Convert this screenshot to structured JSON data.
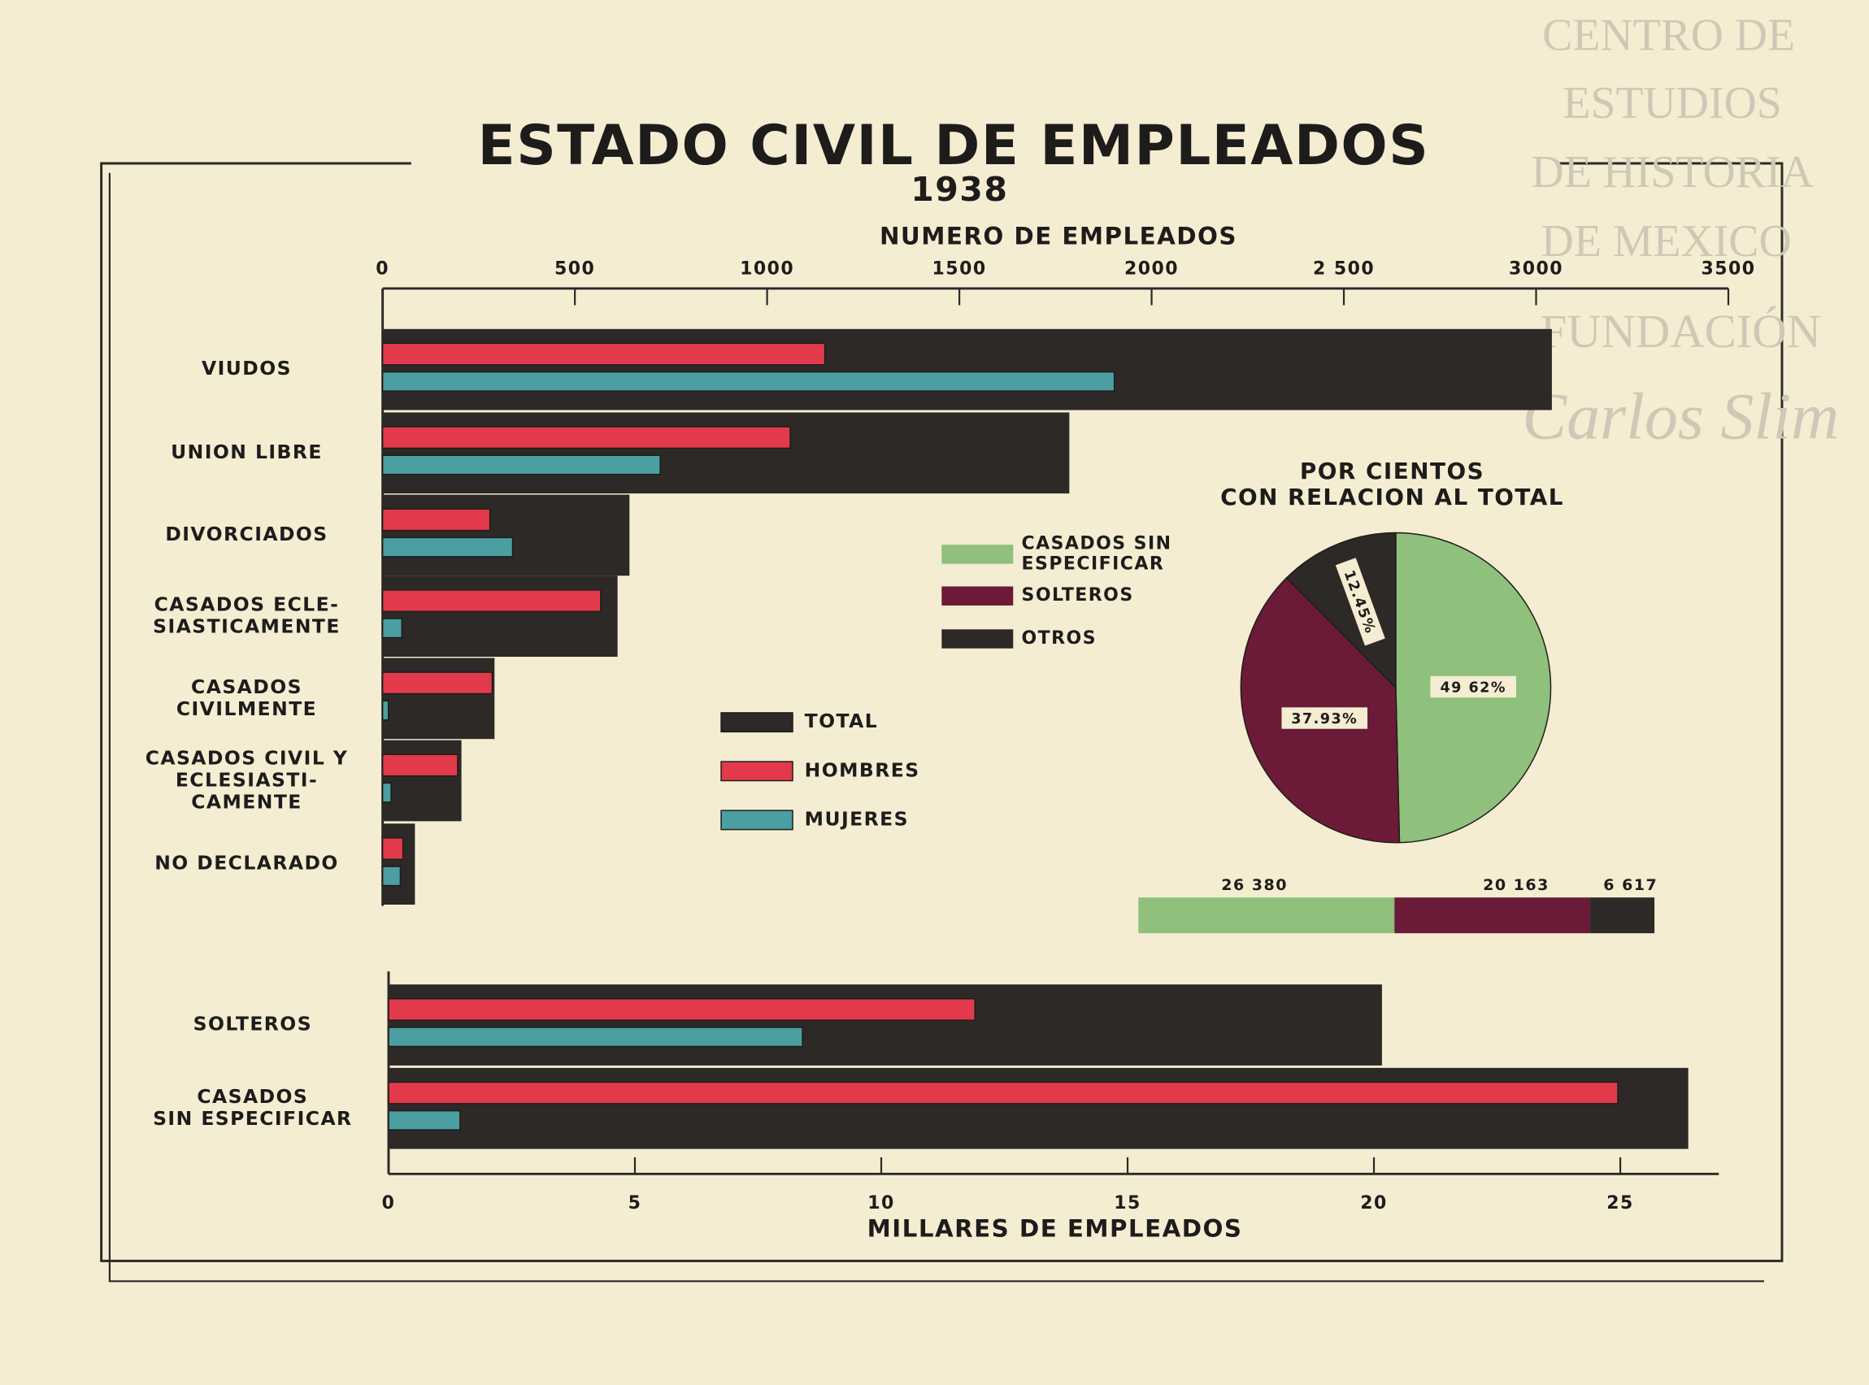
{
  "watermark": {
    "lines": [
      "CENTRO DE",
      "ESTUDIOS",
      "DE HISTORIA",
      "DE MEXICO"
    ],
    "foundation": "FUNDACIÓN",
    "signature": "Carlos Slim"
  },
  "chart_data": [
    {
      "type": "hbar",
      "title": "ESTADO CIVIL DE EMPLEADOS",
      "subtitle": "1938",
      "x_label": "NUMERO DE EMPLEADOS",
      "categories": [
        "VIUDOS",
        "UNION LIBRE",
        "DIVORCIADOS",
        "CASADOS ECLE-\nSIASTICAMENTE",
        "CASADOS\nCIVILMENTE",
        "CASADOS CIVIL Y\nECLESIASTI-\nCAMENTE",
        "NO DECLARADO"
      ],
      "series": [
        {
          "name": "TOTAL",
          "color": "#2c2927",
          "values": [
            3041,
            1786,
            642,
            611,
            291,
            205,
            84
          ]
        },
        {
          "name": "HOMBRES",
          "color": "#e23a4a",
          "values": [
            1150,
            1060,
            279,
            567,
            285,
            195,
            53
          ]
        },
        {
          "name": "MUJERES",
          "color": "#4b9ea2",
          "values": [
            1903,
            722,
            338,
            50,
            15,
            22,
            46
          ]
        }
      ],
      "xlim": [
        0,
        3500
      ],
      "xticks": [
        0,
        500,
        1000,
        1500,
        2000,
        {
          "value": 2500,
          "label": "2 500"
        },
        3000,
        3500
      ]
    },
    {
      "type": "hbar",
      "x_label": "MILLARES DE EMPLEADOS",
      "categories": [
        "SOLTEROS",
        "CASADOS\nSIN ESPECIFICAR"
      ],
      "series": [
        {
          "color": "#2c2927",
          "values": [
            20.163,
            26.38
          ]
        },
        {
          "color": "#e23a4a",
          "values": [
            11.9,
            24.95
          ]
        },
        {
          "color": "#4b9ea2",
          "values": [
            8.4,
            1.45
          ]
        }
      ],
      "xlim": [
        0,
        27
      ],
      "xticks": [
        0,
        5,
        10,
        15,
        20,
        25
      ]
    },
    {
      "type": "pie",
      "title": "POR CIENTOS\nCON RELACION AL TOTAL",
      "labels": [
        "CASADOS SIN\nESPECIFICAR",
        "SOLTEROS",
        "OTROS"
      ],
      "values": [
        49.62,
        37.93,
        12.45
      ],
      "value_labels": [
        "49 62%",
        "37.93%",
        "12.45%"
      ],
      "colors": [
        "#8fc07c",
        "#6b1b37",
        "#2c2927"
      ]
    },
    {
      "type": "stacked_bar",
      "values": [
        26380,
        20163,
        6617
      ],
      "value_labels": [
        "26 380",
        "20 163",
        "6 617"
      ],
      "colors": [
        "#8fc07c",
        "#6b1b37",
        "#2c2927"
      ],
      "xlim": [
        0,
        53160
      ]
    }
  ]
}
